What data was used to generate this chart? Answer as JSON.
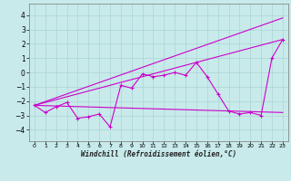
{
  "xlabel": "Windchill (Refroidissement éolien,°C)",
  "background_color": "#c8eaea",
  "grid_color": "#b0d8d8",
  "line_color": "#cc00cc",
  "xlim": [
    -0.5,
    23.5
  ],
  "ylim": [
    -4.8,
    4.8
  ],
  "yticks": [
    -4,
    -3,
    -2,
    -1,
    0,
    1,
    2,
    3,
    4
  ],
  "xticks": [
    0,
    1,
    2,
    3,
    4,
    5,
    6,
    7,
    8,
    9,
    10,
    11,
    12,
    13,
    14,
    15,
    16,
    17,
    18,
    19,
    20,
    21,
    22,
    23
  ],
  "series": [
    {
      "x": [
        0,
        1,
        2,
        3,
        4,
        5,
        6,
        7,
        8,
        9,
        10,
        11,
        12,
        13,
        14,
        15,
        16,
        17,
        18,
        19,
        20,
        21,
        22,
        23
      ],
      "y": [
        -2.3,
        -2.8,
        -2.4,
        -2.1,
        -3.2,
        -3.1,
        -2.9,
        -3.8,
        -0.9,
        -1.1,
        -0.1,
        -0.3,
        -0.2,
        0.0,
        -0.2,
        0.7,
        -0.3,
        -1.5,
        -2.7,
        -2.9,
        -2.8,
        -3.0,
        1.0,
        2.3
      ],
      "marker": "+"
    },
    {
      "x": [
        0,
        23
      ],
      "y": [
        -2.3,
        3.8
      ],
      "marker": null
    },
    {
      "x": [
        0,
        23
      ],
      "y": [
        -2.3,
        2.3
      ],
      "marker": null
    },
    {
      "x": [
        0,
        23
      ],
      "y": [
        -2.3,
        -2.8
      ],
      "marker": null
    }
  ]
}
